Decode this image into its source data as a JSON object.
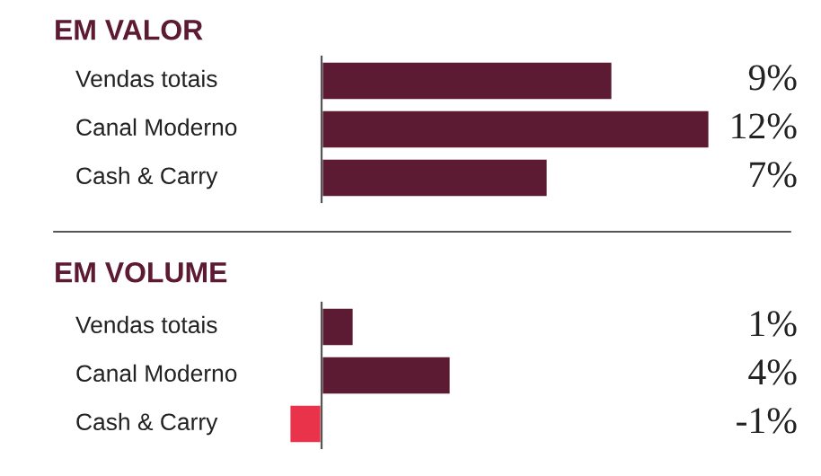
{
  "chart_data": [
    {
      "type": "bar",
      "orientation": "horizontal",
      "title": "EM VALOR",
      "categories": [
        "Vendas totais",
        "Canal Moderno",
        "Cash & Carry"
      ],
      "values": [
        9,
        12,
        7
      ],
      "colors": [
        "#5c1a33",
        "#5c1a33",
        "#5c1a33"
      ],
      "value_labels": [
        "9%",
        "12%",
        "7%"
      ]
    },
    {
      "type": "bar",
      "orientation": "horizontal",
      "title": "EM VOLUME",
      "categories": [
        "Vendas totais",
        "Canal Moderno",
        "Cash & Carry"
      ],
      "values": [
        1,
        4,
        -1
      ],
      "colors": [
        "#5c1a33",
        "#5c1a33",
        "#e8334a"
      ],
      "value_labels": [
        "1%",
        "4%",
        "-1%"
      ]
    }
  ]
}
